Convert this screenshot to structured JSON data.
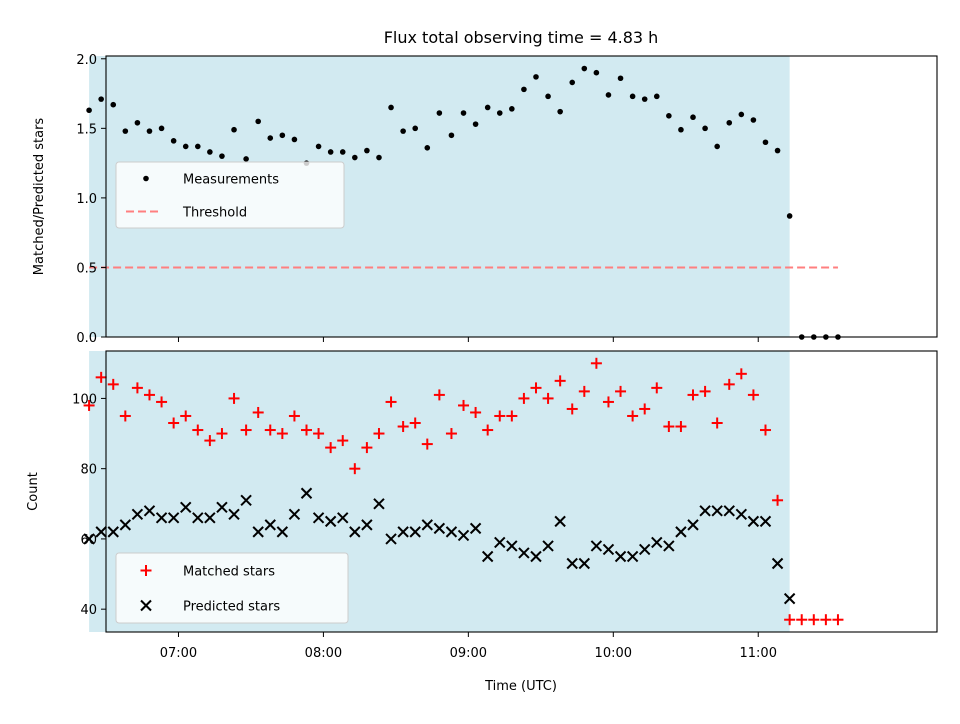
{
  "figure": {
    "title": "Flux total observing time = 4.83 h",
    "xlabel": "Time (UTC)",
    "x_ticks": [
      "07:00",
      "08:00",
      "09:00",
      "10:00",
      "11:00"
    ]
  },
  "colors": {
    "shade": "#add8e6",
    "measurement": "#000000",
    "threshold": "#ff7f7f",
    "matched": "#ff0000",
    "predicted": "#000000"
  },
  "chart_data": [
    {
      "type": "scatter",
      "ylabel": "Matched/Predicted stars",
      "xlim": [
        "06:30",
        "12:14"
      ],
      "ylim": [
        0,
        2.02
      ],
      "y_ticks": [
        "0.0",
        "0.5",
        "1.0",
        "1.5",
        "2.0"
      ],
      "shaded_interval": [
        "06:23",
        "11:13"
      ],
      "legend": {
        "position": "center-left",
        "items": [
          {
            "label": "Measurements",
            "marker": "dot"
          },
          {
            "label": "Threshold",
            "marker": "dashed-line"
          }
        ]
      },
      "series": [
        {
          "name": "Measurements",
          "x": [
            "06:23",
            "06:28",
            "06:33",
            "06:38",
            "06:43",
            "06:48",
            "06:53",
            "06:58",
            "07:03",
            "07:08",
            "07:13",
            "07:18",
            "07:23",
            "07:28",
            "07:33",
            "07:38",
            "07:43",
            "07:48",
            "07:53",
            "07:58",
            "08:03",
            "08:08",
            "08:13",
            "08:18",
            "08:23",
            "08:28",
            "08:33",
            "08:38",
            "08:43",
            "08:48",
            "08:53",
            "08:58",
            "09:03",
            "09:08",
            "09:13",
            "09:18",
            "09:23",
            "09:28",
            "09:33",
            "09:38",
            "09:43",
            "09:48",
            "09:53",
            "09:58",
            "10:03",
            "10:08",
            "10:13",
            "10:18",
            "10:23",
            "10:28",
            "10:33",
            "10:38",
            "10:43",
            "10:48",
            "10:53",
            "10:58",
            "11:03",
            "11:08",
            "11:13",
            "11:18",
            "11:23",
            "11:28",
            "11:33"
          ],
          "y": [
            1.63,
            1.71,
            1.67,
            1.48,
            1.54,
            1.48,
            1.5,
            1.41,
            1.37,
            1.37,
            1.33,
            1.3,
            1.49,
            1.28,
            1.55,
            1.43,
            1.45,
            1.42,
            1.25,
            1.37,
            1.33,
            1.33,
            1.29,
            1.34,
            1.29,
            1.65,
            1.48,
            1.5,
            1.36,
            1.61,
            1.45,
            1.61,
            1.53,
            1.65,
            1.61,
            1.64,
            1.78,
            1.87,
            1.73,
            1.62,
            1.83,
            1.93,
            1.9,
            1.74,
            1.86,
            1.73,
            1.71,
            1.73,
            1.59,
            1.49,
            1.58,
            1.5,
            1.37,
            1.54,
            1.6,
            1.56,
            1.4,
            1.34,
            0.87,
            0,
            0,
            0,
            0
          ]
        },
        {
          "name": "Threshold",
          "x": [
            "06:23",
            "11:33"
          ],
          "y": [
            0.5,
            0.5
          ]
        }
      ]
    },
    {
      "type": "scatter",
      "ylabel": "Count",
      "xlim": [
        "06:30",
        "12:14"
      ],
      "ylim": [
        33.5,
        113.5
      ],
      "y_ticks": [
        "40",
        "60",
        "80",
        "100"
      ],
      "shaded_interval": [
        "06:23",
        "11:13"
      ],
      "legend": {
        "position": "bottom-left",
        "items": [
          {
            "label": "Matched stars",
            "marker": "plus"
          },
          {
            "label": "Predicted stars",
            "marker": "x"
          }
        ]
      },
      "series": [
        {
          "name": "Matched stars",
          "x": [
            "06:23",
            "06:28",
            "06:33",
            "06:38",
            "06:43",
            "06:48",
            "06:53",
            "06:58",
            "07:03",
            "07:08",
            "07:13",
            "07:18",
            "07:23",
            "07:28",
            "07:33",
            "07:38",
            "07:43",
            "07:48",
            "07:53",
            "07:58",
            "08:03",
            "08:08",
            "08:13",
            "08:18",
            "08:23",
            "08:28",
            "08:33",
            "08:38",
            "08:43",
            "08:48",
            "08:53",
            "08:58",
            "09:03",
            "09:08",
            "09:13",
            "09:18",
            "09:23",
            "09:28",
            "09:33",
            "09:38",
            "09:43",
            "09:48",
            "09:53",
            "09:58",
            "10:03",
            "10:08",
            "10:13",
            "10:18",
            "10:23",
            "10:28",
            "10:33",
            "10:38",
            "10:43",
            "10:48",
            "10:53",
            "10:58",
            "11:03",
            "11:08",
            "11:13",
            "11:18",
            "11:23",
            "11:28",
            "11:33"
          ],
          "y": [
            98,
            106,
            104,
            95,
            103,
            101,
            99,
            93,
            95,
            91,
            88,
            90,
            100,
            91,
            96,
            91,
            90,
            95,
            91,
            90,
            86,
            88,
            80,
            86,
            90,
            99,
            92,
            93,
            87,
            101,
            90,
            98,
            96,
            91,
            95,
            95,
            100,
            103,
            100,
            105,
            97,
            102,
            110,
            99,
            102,
            95,
            97,
            103,
            92,
            92,
            101,
            102,
            93,
            104,
            107,
            101,
            91,
            71,
            37,
            37,
            37,
            37,
            37
          ]
        },
        {
          "name": "Predicted stars",
          "x": [
            "06:23",
            "06:28",
            "06:33",
            "06:38",
            "06:43",
            "06:48",
            "06:53",
            "06:58",
            "07:03",
            "07:08",
            "07:13",
            "07:18",
            "07:23",
            "07:28",
            "07:33",
            "07:38",
            "07:43",
            "07:48",
            "07:53",
            "07:58",
            "08:03",
            "08:08",
            "08:13",
            "08:18",
            "08:23",
            "08:28",
            "08:33",
            "08:38",
            "08:43",
            "08:48",
            "08:53",
            "08:58",
            "09:03",
            "09:08",
            "09:13",
            "09:18",
            "09:23",
            "09:28",
            "09:33",
            "09:38",
            "09:43",
            "09:48",
            "09:53",
            "09:58",
            "10:03",
            "10:08",
            "10:13",
            "10:18",
            "10:23",
            "10:28",
            "10:33",
            "10:38",
            "10:43",
            "10:48",
            "10:53",
            "10:58",
            "11:03",
            "11:08",
            "11:13"
          ],
          "y": [
            60,
            62,
            62,
            64,
            67,
            68,
            66,
            66,
            69,
            66,
            66,
            69,
            67,
            71,
            62,
            64,
            62,
            67,
            73,
            66,
            65,
            66,
            62,
            64,
            70,
            60,
            62,
            62,
            64,
            63,
            62,
            61,
            63,
            55,
            59,
            58,
            56,
            55,
            58,
            65,
            53,
            53,
            58,
            57,
            55,
            55,
            57,
            59,
            58,
            62,
            64,
            68,
            68,
            68,
            67,
            65,
            65,
            53,
            43
          ]
        }
      ]
    }
  ]
}
